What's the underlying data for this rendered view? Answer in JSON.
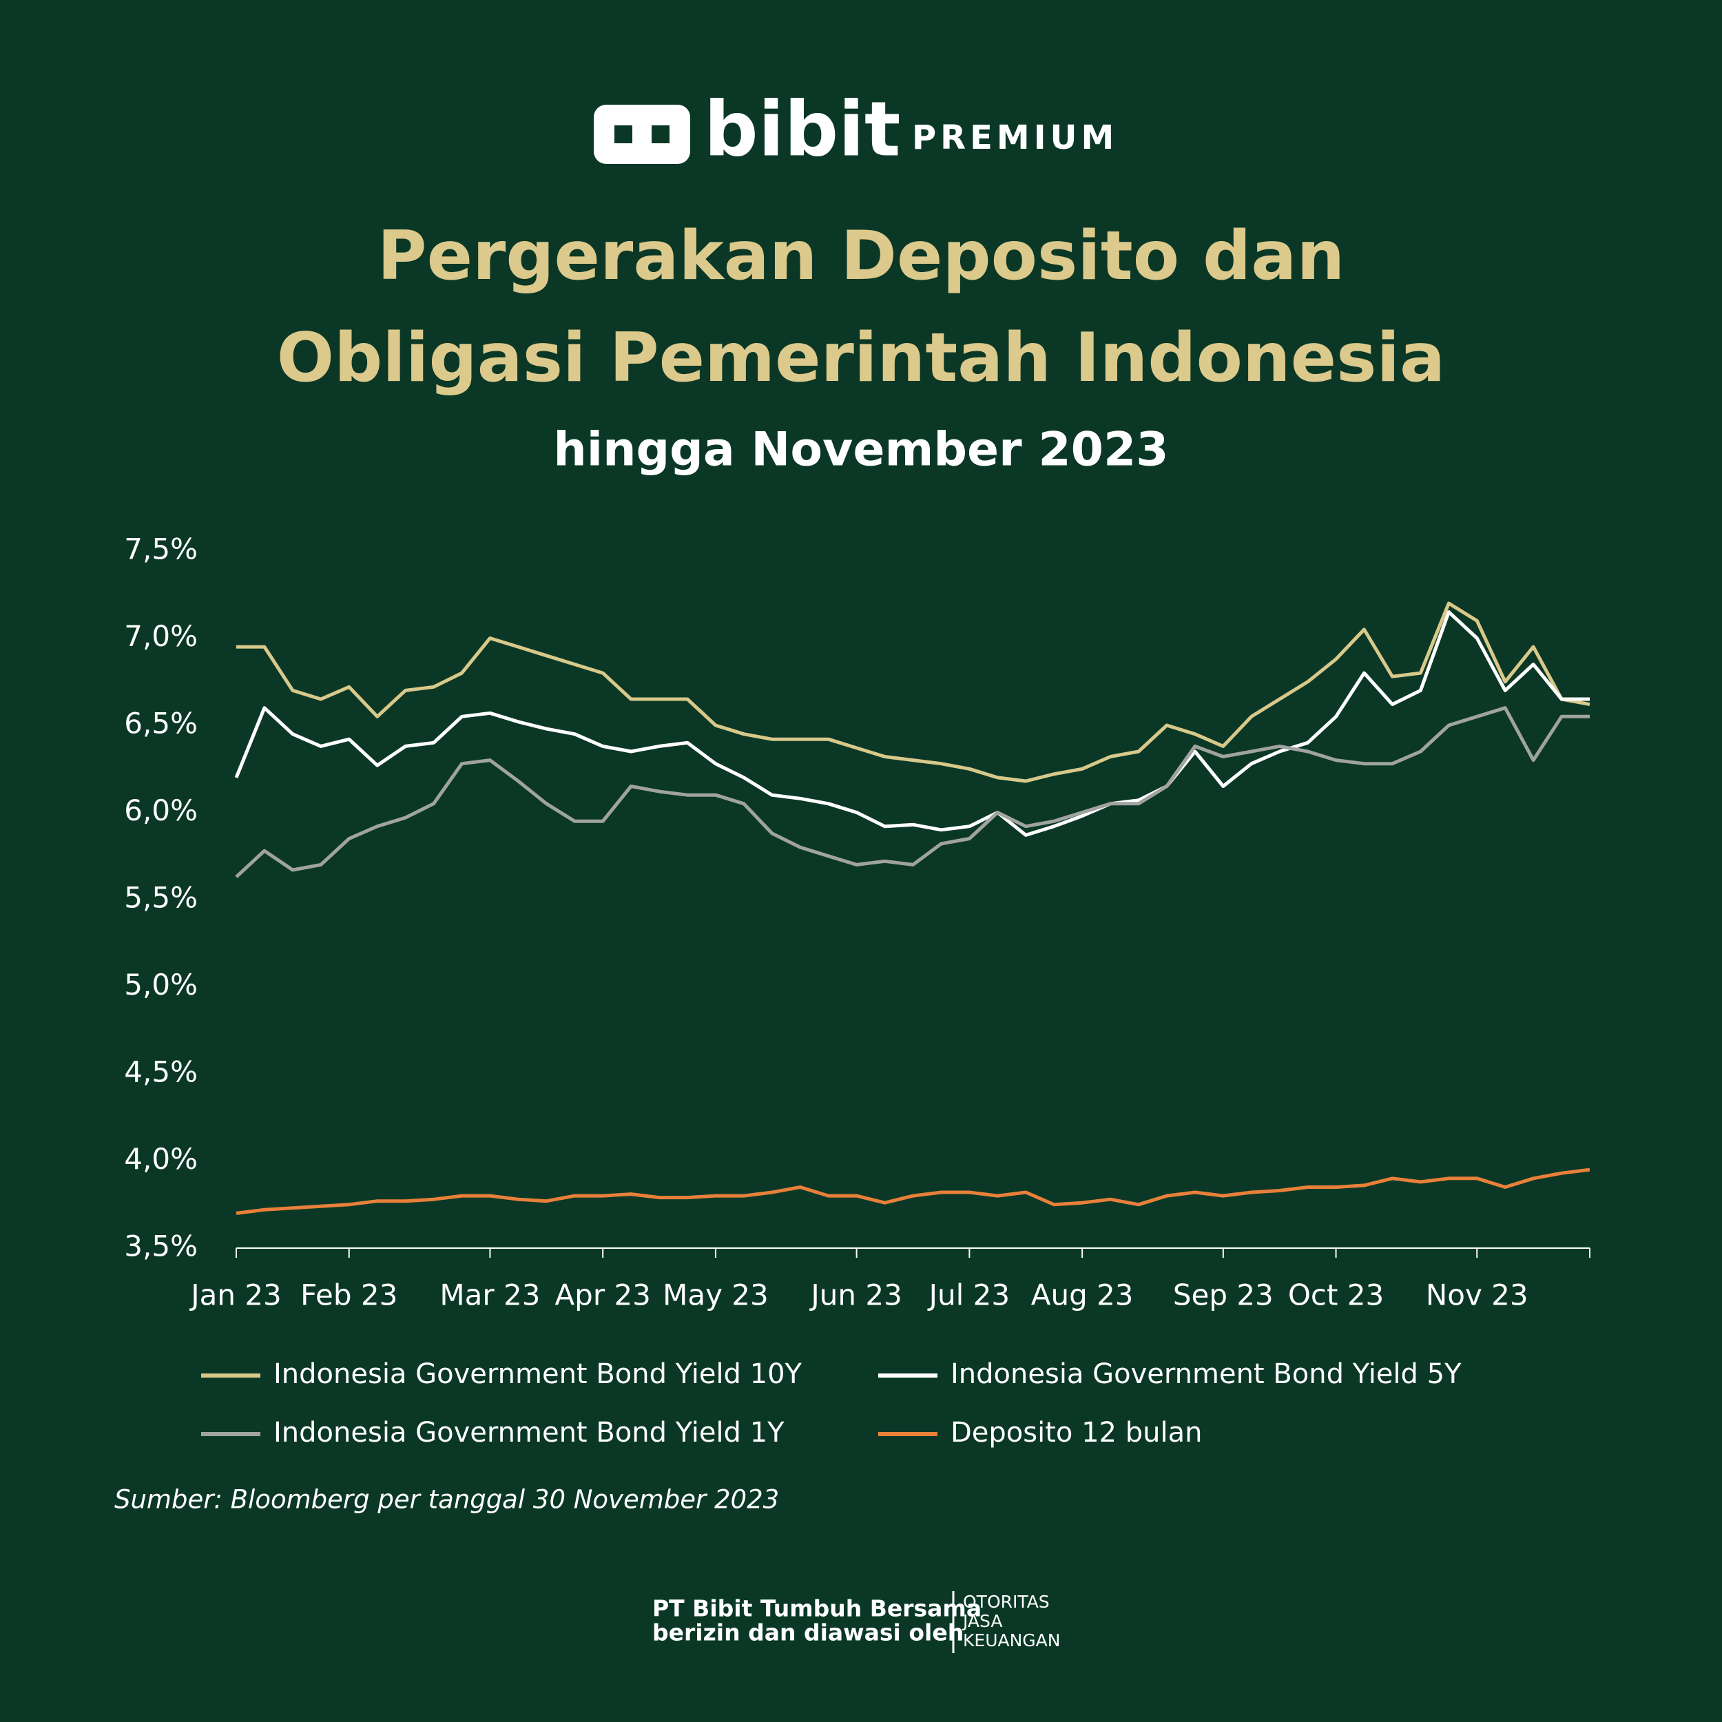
{
  "brand": {
    "name": "bibit",
    "tier": "PREMIUM"
  },
  "chart_data": {
    "type": "line",
    "title": [
      "Pergerakan Deposito dan",
      "Obligasi Pemerintah Indonesia"
    ],
    "subtitle": "hingga November 2023",
    "categories": [
      "Jan 23",
      null,
      null,
      null,
      "Feb 23",
      null,
      null,
      null,
      null,
      "Mar 23",
      null,
      null,
      null,
      "Apr 23",
      null,
      null,
      null,
      "May 23",
      null,
      null,
      null,
      null,
      "Jun 23",
      null,
      null,
      null,
      "Jul 23",
      null,
      null,
      null,
      "Aug 23",
      null,
      null,
      null,
      null,
      "Sep 23",
      null,
      null,
      null,
      "Oct 23",
      null,
      null,
      null,
      null,
      "Nov 23",
      null,
      null,
      null,
      null
    ],
    "series": [
      {
        "name": "Indonesia Government Bond Yield 10Y",
        "color": "#d8c98b",
        "values": [
          6.95,
          6.95,
          6.7,
          6.65,
          6.72,
          6.55,
          6.7,
          6.72,
          6.8,
          7.0,
          6.95,
          6.9,
          6.85,
          6.8,
          6.65,
          6.65,
          6.65,
          6.5,
          6.45,
          6.42,
          6.42,
          6.42,
          6.37,
          6.32,
          6.3,
          6.28,
          6.25,
          6.2,
          6.18,
          6.22,
          6.25,
          6.32,
          6.35,
          6.5,
          6.45,
          6.38,
          6.55,
          6.65,
          6.75,
          6.88,
          7.05,
          6.78,
          6.8,
          7.2,
          7.1,
          6.75,
          6.95,
          6.65,
          6.62
        ]
      },
      {
        "name": "Indonesia Government Bond Yield 5Y",
        "color": "#ffffff",
        "values": [
          6.2,
          6.6,
          6.45,
          6.38,
          6.42,
          6.27,
          6.38,
          6.4,
          6.55,
          6.57,
          6.52,
          6.48,
          6.45,
          6.38,
          6.35,
          6.38,
          6.4,
          6.28,
          6.2,
          6.1,
          6.08,
          6.05,
          6.0,
          5.92,
          5.93,
          5.9,
          5.92,
          6.0,
          5.87,
          5.92,
          5.98,
          6.05,
          6.07,
          6.15,
          6.35,
          6.15,
          6.28,
          6.35,
          6.4,
          6.55,
          6.8,
          6.62,
          6.7,
          7.15,
          7.0,
          6.7,
          6.85,
          6.65,
          6.65
        ]
      },
      {
        "name": "Indonesia Government Bond Yield 1Y",
        "color": "#a0a3a0",
        "values": [
          5.63,
          5.78,
          5.67,
          5.7,
          5.85,
          5.92,
          5.97,
          6.05,
          6.28,
          6.3,
          6.18,
          6.05,
          5.95,
          5.95,
          6.15,
          6.12,
          6.1,
          6.1,
          6.05,
          5.88,
          5.8,
          5.75,
          5.7,
          5.72,
          5.7,
          5.82,
          5.85,
          6.0,
          5.92,
          5.95,
          6.0,
          6.05,
          6.05,
          6.15,
          6.38,
          6.32,
          6.35,
          6.38,
          6.35,
          6.3,
          6.28,
          6.28,
          6.35,
          6.5,
          6.55,
          6.6,
          6.3,
          6.55,
          6.55
        ]
      },
      {
        "name": "Deposito 12 bulan",
        "color": "#e9803a",
        "values": [
          3.7,
          3.72,
          3.73,
          3.74,
          3.75,
          3.77,
          3.77,
          3.78,
          3.8,
          3.8,
          3.78,
          3.77,
          3.8,
          3.8,
          3.81,
          3.79,
          3.79,
          3.8,
          3.8,
          3.82,
          3.85,
          3.8,
          3.8,
          3.76,
          3.8,
          3.82,
          3.82,
          3.8,
          3.82,
          3.75,
          3.76,
          3.78,
          3.75,
          3.8,
          3.82,
          3.8,
          3.82,
          3.83,
          3.85,
          3.85,
          3.86,
          3.9,
          3.88,
          3.9,
          3.9,
          3.85,
          3.9,
          3.93,
          3.95
        ]
      }
    ],
    "ylim": [
      3.5,
      7.5
    ],
    "yticks": [
      {
        "value": 3.5,
        "label": "3,5%"
      },
      {
        "value": 4.0,
        "label": "4,0%"
      },
      {
        "value": 4.5,
        "label": "4,5%"
      },
      {
        "value": 5.0,
        "label": "5,0%"
      },
      {
        "value": 5.5,
        "label": "5,5%"
      },
      {
        "value": 6.0,
        "label": "6,0%"
      },
      {
        "value": 6.5,
        "label": "6,5%"
      },
      {
        "value": 7.0,
        "label": "7,0%"
      },
      {
        "value": 7.5,
        "label": "7,5%"
      }
    ],
    "grid": false,
    "legend": "bottom",
    "source": "Sumber: Bloomberg per tanggal 30 November 2023"
  },
  "footer": {
    "company": "PT Bibit Tumbuh Bersama",
    "note": "berizin dan diawasi oleh",
    "regulator": [
      "OTORITAS",
      "JASA",
      "KEUANGAN"
    ]
  }
}
